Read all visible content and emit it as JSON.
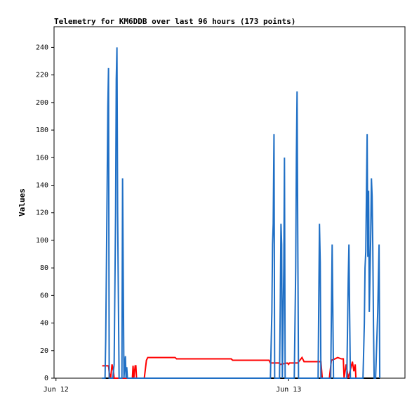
{
  "chart_data": {
    "type": "line",
    "title": "Telemetry for KM6DDB over last 96 hours (173 points)",
    "y_label": "Values",
    "xlim": [
      -0.2,
      36
    ],
    "xticks": [
      {
        "value": 0,
        "label": "Jun 12"
      },
      {
        "value": 24,
        "label": "Jun 13"
      }
    ],
    "ylim": [
      0,
      255
    ],
    "yticks": [
      0,
      20,
      40,
      60,
      80,
      100,
      120,
      140,
      160,
      180,
      200,
      220,
      240
    ],
    "grid": false,
    "series": [
      {
        "color": "#000000",
        "x": [
          4.77,
          33.4
        ],
        "values": [
          0,
          0
        ]
      },
      {
        "color": "#ff0000",
        "x": [
          4.77,
          5.06,
          5.42,
          5.49,
          5.64,
          5.78,
          5.93,
          6.0,
          7.88,
          7.95,
          8.03,
          8.17,
          8.24,
          8.31,
          9.11,
          9.33,
          9.47,
          12.29,
          12.44,
          18.08,
          18.22,
          21.98,
          22.12,
          22.99,
          23.14,
          23.86,
          24.0,
          24.08,
          24.94,
          25.38,
          25.59,
          27.33,
          27.47,
          28.2,
          28.41,
          28.78,
          29.06,
          29.43,
          29.64,
          29.72,
          29.93,
          30.15,
          30.58,
          30.73,
          30.87,
          30.94
        ],
        "values": [
          9,
          9,
          9,
          4,
          0,
          10,
          5,
          0,
          0,
          9,
          0,
          9,
          9,
          0,
          0,
          13,
          15,
          15,
          14,
          14,
          13,
          13,
          11,
          11,
          10,
          11,
          10,
          11,
          11,
          15,
          12,
          12,
          0,
          0,
          13,
          14,
          15,
          14,
          14,
          0,
          10,
          0,
          12,
          5,
          10,
          0
        ]
      },
      {
        "color": "#1f6fc5",
        "x": [
          4.77,
          5.06,
          5.13,
          5.21,
          5.28,
          5.35,
          5.42,
          5.49,
          5.86,
          6.0,
          6.15,
          6.22,
          6.29,
          6.36,
          6.51,
          6.8,
          6.87,
          6.94,
          7.01,
          7.16,
          7.23,
          7.3,
          7.37,
          22.12,
          22.27,
          22.34,
          22.41,
          22.49,
          22.56,
          23.06,
          23.14,
          23.21,
          23.28,
          23.35,
          23.5,
          23.57,
          23.64,
          24.58,
          24.73,
          24.8,
          24.87,
          24.94,
          25.02,
          27.04,
          27.11,
          27.18,
          27.26,
          27.33,
          28.34,
          28.49,
          28.56,
          28.63,
          30.0,
          30.15,
          30.22,
          30.29,
          30.37,
          31.67,
          31.81,
          31.88,
          31.96,
          32.03,
          32.1,
          32.17,
          32.25,
          32.32,
          32.46,
          32.54,
          32.61,
          32.68,
          32.75,
          32.82,
          32.97,
          33.19,
          33.33,
          33.4
        ],
        "values": [
          0,
          0,
          28,
          85,
          140,
          197,
          225,
          0,
          0,
          10,
          120,
          217,
          240,
          120,
          0,
          0,
          145,
          72,
          0,
          16,
          0,
          8,
          0,
          0,
          48,
          97,
          112,
          177,
          0,
          0,
          56,
          112,
          97,
          0,
          80,
          160,
          0,
          0,
          80,
          160,
          208,
          104,
          0,
          0,
          56,
          112,
          84,
          0,
          0,
          97,
          48,
          0,
          0,
          72,
          97,
          48,
          0,
          0,
          40,
          80,
          92,
          136,
          177,
          88,
          136,
          48,
          100,
          145,
          132,
          96,
          40,
          0,
          0,
          48,
          97,
          0
        ]
      }
    ]
  }
}
